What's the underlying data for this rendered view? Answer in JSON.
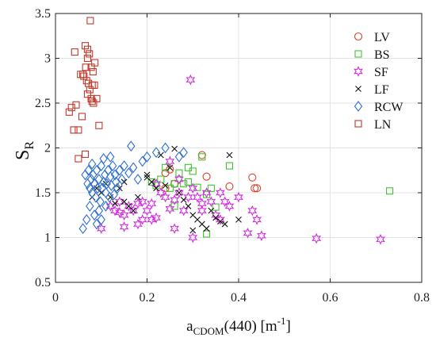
{
  "chart_data": {
    "type": "scatter",
    "xlabel_main": "a",
    "xlabel_sub": "CDOM",
    "xlabel_rest": "(440) [m",
    "xlabel_sup": "-1",
    "xlabel_close": "]",
    "ylabel_main": "S",
    "ylabel_sub": "R",
    "xlim": [
      0,
      0.8
    ],
    "ylim": [
      0.5,
      3.5
    ],
    "xticks": [
      "0",
      "0.2",
      "0.4",
      "0.6",
      "0.8"
    ],
    "xtick_values": [
      0,
      0.2,
      0.4,
      0.6,
      0.8
    ],
    "yticks": [
      "0.5",
      "1",
      "1.5",
      "2",
      "2.5",
      "3",
      "3.5"
    ],
    "ytick_values": [
      0.5,
      1,
      1.5,
      2,
      2.5,
      3,
      3.5
    ],
    "grid": true,
    "legend_position": "top-right",
    "series": [
      {
        "name": "LV",
        "marker": "circle",
        "color": "#d9412b",
        "points": [
          [
            0.24,
            1.72
          ],
          [
            0.25,
            1.76
          ],
          [
            0.32,
            1.92
          ],
          [
            0.33,
            1.68
          ],
          [
            0.38,
            1.57
          ],
          [
            0.43,
            1.67
          ],
          [
            0.435,
            1.55
          ],
          [
            0.44,
            1.55
          ],
          [
            0.24,
            1.55
          ],
          [
            0.26,
            1.6
          ]
        ]
      },
      {
        "name": "BS",
        "marker": "square",
        "color": "#3fc52f",
        "points": [
          [
            0.21,
            1.62
          ],
          [
            0.22,
            1.58
          ],
          [
            0.23,
            1.65
          ],
          [
            0.24,
            1.78
          ],
          [
            0.25,
            1.55
          ],
          [
            0.26,
            1.6
          ],
          [
            0.27,
            1.72
          ],
          [
            0.28,
            1.6
          ],
          [
            0.29,
            1.78
          ],
          [
            0.3,
            1.74
          ],
          [
            0.31,
            1.56
          ],
          [
            0.32,
            1.9
          ],
          [
            0.33,
            1.48
          ],
          [
            0.34,
            1.55
          ],
          [
            0.35,
            1.34
          ],
          [
            0.38,
            1.8
          ],
          [
            0.33,
            1.04
          ],
          [
            0.73,
            1.52
          ],
          [
            0.29,
            1.62
          ],
          [
            0.26,
            1.35
          ]
        ]
      },
      {
        "name": "SF",
        "marker": "star",
        "color": "#d42ee0",
        "points": [
          [
            0.1,
            1.1
          ],
          [
            0.12,
            1.35
          ],
          [
            0.13,
            1.3
          ],
          [
            0.14,
            1.4
          ],
          [
            0.15,
            1.25
          ],
          [
            0.16,
            1.35
          ],
          [
            0.17,
            1.3
          ],
          [
            0.18,
            1.38
          ],
          [
            0.19,
            1.2
          ],
          [
            0.2,
            1.3
          ],
          [
            0.21,
            1.38
          ],
          [
            0.22,
            1.22
          ],
          [
            0.23,
            1.5
          ],
          [
            0.24,
            1.45
          ],
          [
            0.25,
            1.32
          ],
          [
            0.26,
            1.42
          ],
          [
            0.27,
            1.5
          ],
          [
            0.28,
            1.3
          ],
          [
            0.29,
            1.45
          ],
          [
            0.3,
            1.55
          ],
          [
            0.31,
            1.45
          ],
          [
            0.32,
            1.38
          ],
          [
            0.33,
            1.5
          ],
          [
            0.34,
            1.4
          ],
          [
            0.35,
            1.25
          ],
          [
            0.36,
            1.2
          ],
          [
            0.37,
            1.4
          ],
          [
            0.38,
            1.35
          ],
          [
            0.4,
            1.45
          ],
          [
            0.42,
            1.05
          ],
          [
            0.43,
            1.3
          ],
          [
            0.44,
            1.2
          ],
          [
            0.45,
            1.02
          ],
          [
            0.57,
            0.99
          ],
          [
            0.71,
            0.98
          ],
          [
            0.295,
            2.76
          ],
          [
            0.15,
            1.12
          ],
          [
            0.18,
            1.15
          ],
          [
            0.21,
            1.2
          ],
          [
            0.26,
            1.1
          ],
          [
            0.3,
            1.0
          ],
          [
            0.22,
            1.6
          ],
          [
            0.25,
            1.85
          ],
          [
            0.27,
            1.65
          ],
          [
            0.14,
            1.28
          ],
          [
            0.19,
            1.4
          ],
          [
            0.32,
            1.3
          ],
          [
            0.36,
            1.5
          ]
        ]
      },
      {
        "name": "LF",
        "marker": "x",
        "color": "#111111",
        "points": [
          [
            0.08,
            1.45
          ],
          [
            0.09,
            1.55
          ],
          [
            0.1,
            1.5
          ],
          [
            0.11,
            1.6
          ],
          [
            0.12,
            1.45
          ],
          [
            0.13,
            1.38
          ],
          [
            0.14,
            1.55
          ],
          [
            0.15,
            1.62
          ],
          [
            0.16,
            1.35
          ],
          [
            0.17,
            1.3
          ],
          [
            0.18,
            1.45
          ],
          [
            0.2,
            1.7
          ],
          [
            0.21,
            1.62
          ],
          [
            0.22,
            1.55
          ],
          [
            0.23,
            1.92
          ],
          [
            0.24,
            1.58
          ],
          [
            0.25,
            1.78
          ],
          [
            0.26,
            1.99
          ],
          [
            0.27,
            1.5
          ],
          [
            0.28,
            1.42
          ],
          [
            0.29,
            1.35
          ],
          [
            0.3,
            1.25
          ],
          [
            0.31,
            1.2
          ],
          [
            0.32,
            1.15
          ],
          [
            0.33,
            1.1
          ],
          [
            0.34,
            1.3
          ],
          [
            0.35,
            1.22
          ],
          [
            0.36,
            1.18
          ],
          [
            0.37,
            1.15
          ],
          [
            0.38,
            1.92
          ],
          [
            0.4,
            1.2
          ],
          [
            0.3,
            1.08
          ],
          [
            0.2,
            1.67
          ],
          [
            0.15,
            1.4
          ]
        ]
      },
      {
        "name": "RCW",
        "marker": "diamond",
        "color": "#2f6fcf",
        "points": [
          [
            0.06,
            1.1
          ],
          [
            0.065,
            1.7
          ],
          [
            0.07,
            1.6
          ],
          [
            0.072,
            1.75
          ],
          [
            0.075,
            1.55
          ],
          [
            0.078,
            1.65
          ],
          [
            0.08,
            1.5
          ],
          [
            0.082,
            1.7
          ],
          [
            0.085,
            1.6
          ],
          [
            0.088,
            1.45
          ],
          [
            0.09,
            1.75
          ],
          [
            0.092,
            1.55
          ],
          [
            0.095,
            1.65
          ],
          [
            0.098,
            1.4
          ],
          [
            0.1,
            1.8
          ],
          [
            0.102,
            1.55
          ],
          [
            0.105,
            1.62
          ],
          [
            0.108,
            1.7
          ],
          [
            0.11,
            1.5
          ],
          [
            0.112,
            1.6
          ],
          [
            0.115,
            1.75
          ],
          [
            0.118,
            1.45
          ],
          [
            0.12,
            1.68
          ],
          [
            0.122,
            1.58
          ],
          [
            0.125,
            1.8
          ],
          [
            0.128,
            1.48
          ],
          [
            0.13,
            1.7
          ],
          [
            0.132,
            1.62
          ],
          [
            0.135,
            1.55
          ],
          [
            0.14,
            1.75
          ],
          [
            0.145,
            1.65
          ],
          [
            0.15,
            1.8
          ],
          [
            0.16,
            1.72
          ],
          [
            0.165,
            2.02
          ],
          [
            0.17,
            1.78
          ],
          [
            0.18,
            1.65
          ],
          [
            0.19,
            1.85
          ],
          [
            0.2,
            1.9
          ],
          [
            0.22,
            1.95
          ],
          [
            0.24,
            2.0
          ],
          [
            0.27,
            1.9
          ],
          [
            0.28,
            1.95
          ],
          [
            0.085,
            1.25
          ],
          [
            0.095,
            1.3
          ],
          [
            0.1,
            1.2
          ],
          [
            0.11,
            1.35
          ],
          [
            0.075,
            1.35
          ],
          [
            0.09,
            1.15
          ],
          [
            0.068,
            1.2
          ],
          [
            0.105,
            1.88
          ],
          [
            0.12,
            1.9
          ],
          [
            0.08,
            1.82
          ]
        ]
      },
      {
        "name": "LN",
        "marker": "square",
        "color": "#c0392b",
        "points": [
          [
            0.03,
            2.4
          ],
          [
            0.035,
            2.45
          ],
          [
            0.04,
            2.2
          ],
          [
            0.042,
            3.07
          ],
          [
            0.045,
            2.48
          ],
          [
            0.05,
            2.2
          ],
          [
            0.05,
            1.88
          ],
          [
            0.055,
            2.82
          ],
          [
            0.058,
            2.35
          ],
          [
            0.06,
            2.82
          ],
          [
            0.062,
            2.8
          ],
          [
            0.065,
            3.14
          ],
          [
            0.066,
            2.9
          ],
          [
            0.068,
            2.75
          ],
          [
            0.07,
            3.0
          ],
          [
            0.07,
            2.6
          ],
          [
            0.072,
            2.72
          ],
          [
            0.074,
            3.05
          ],
          [
            0.075,
            2.65
          ],
          [
            0.076,
            3.42
          ],
          [
            0.078,
            2.9
          ],
          [
            0.08,
            2.7
          ],
          [
            0.08,
            2.52
          ],
          [
            0.082,
            2.85
          ],
          [
            0.083,
            2.5
          ],
          [
            0.085,
            2.7
          ],
          [
            0.086,
            2.95
          ],
          [
            0.09,
            2.55
          ],
          [
            0.095,
            2.25
          ],
          [
            0.065,
            1.93
          ],
          [
            0.07,
            3.1
          ],
          [
            0.078,
            2.55
          ]
        ]
      }
    ]
  }
}
